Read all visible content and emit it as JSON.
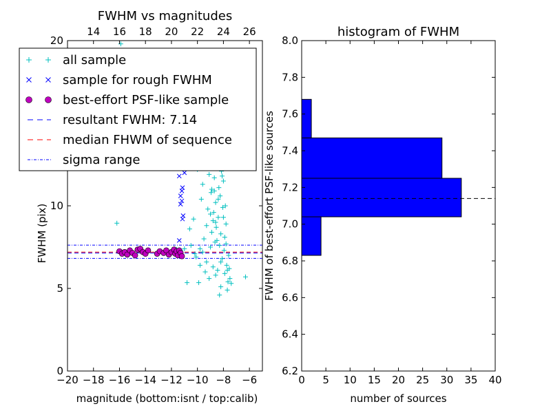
{
  "chart_data": [
    {
      "type": "scatter",
      "title": "FWHM vs magnitudes",
      "xlabel": "magnitude (bottom:isnt / top:calib)",
      "ylabel": "FWHM (pix)",
      "xlim": [
        -20,
        -5
      ],
      "ylim": [
        0,
        20
      ],
      "top_xlim": [
        12,
        27
      ],
      "x_ticks": [
        -20,
        -18,
        -16,
        -14,
        -12,
        -10,
        -8,
        -6
      ],
      "x_tick_labels": [
        "−20",
        "−18",
        "−16",
        "−14",
        "−12",
        "−10",
        "−8",
        "−6"
      ],
      "top_ticks": [
        14,
        16,
        18,
        20,
        22,
        24,
        26
      ],
      "top_tick_labels": [
        "14",
        "16",
        "18",
        "20",
        "22",
        "24",
        "26"
      ],
      "y_ticks": [
        0,
        5,
        10,
        20
      ],
      "y_tick_labels": [
        "0",
        "5",
        "10",
        "20"
      ],
      "legend_position": "upper-left",
      "legend": [
        {
          "label": "all sample",
          "marker": "+",
          "color": "#00BFBF"
        },
        {
          "label": "sample for rough FWHM",
          "marker": "x",
          "color": "#0000FF"
        },
        {
          "label": "best-effort PSF-like sample",
          "marker": "o",
          "color": "#BF00BF"
        },
        {
          "label": "resultant FWHM: 7.14",
          "line": "dashed",
          "color": "#0000FF"
        },
        {
          "label": "median FHWM of sequence",
          "line": "dashed",
          "color": "#FF0000"
        },
        {
          "label": "sigma range",
          "line": "dashdot",
          "color": "#0000FF"
        }
      ],
      "hlines": {
        "resultant": 7.14,
        "median": 7.2,
        "sigma": [
          6.82,
          7.62
        ]
      },
      "series": [
        {
          "name": "all sample",
          "points": [
            [
              -16.2,
              8.95
            ],
            [
              -15.9,
              19.8
            ],
            [
              -11.6,
              7.35
            ],
            [
              -11.3,
              7.3
            ],
            [
              -11.0,
              7.4
            ],
            [
              -10.8,
              5.35
            ],
            [
              -10.6,
              8.6
            ],
            [
              -10.5,
              7.6
            ],
            [
              -10.3,
              9.2
            ],
            [
              -10.2,
              7.1
            ],
            [
              -10.0,
              12.2
            ],
            [
              -9.9,
              5.35
            ],
            [
              -9.8,
              7.4
            ],
            [
              -9.7,
              10.4
            ],
            [
              -9.6,
              11.3
            ],
            [
              -9.5,
              8.0
            ],
            [
              -9.4,
              12.6
            ],
            [
              -9.3,
              6.6
            ],
            [
              -9.2,
              9.8
            ],
            [
              -9.1,
              11.9
            ],
            [
              -9.0,
              7.5
            ],
            [
              -8.95,
              10.8
            ],
            [
              -8.9,
              8.4
            ],
            [
              -8.85,
              12.4
            ],
            [
              -8.8,
              6.3
            ],
            [
              -8.75,
              9.6
            ],
            [
              -8.7,
              11.7
            ],
            [
              -8.65,
              7.8
            ],
            [
              -8.6,
              10.2
            ],
            [
              -8.55,
              8.7
            ],
            [
              -8.5,
              12.8
            ],
            [
              -8.45,
              6.1
            ],
            [
              -8.4,
              9.3
            ],
            [
              -8.35,
              11.1
            ],
            [
              -8.3,
              7.6
            ],
            [
              -8.25,
              10.6
            ],
            [
              -8.2,
              8.3
            ],
            [
              -8.15,
              12.1
            ],
            [
              -8.1,
              6.8
            ],
            [
              -8.05,
              9.9
            ],
            [
              -8.0,
              11.5
            ],
            [
              -7.95,
              7.3
            ],
            [
              -7.9,
              5.9
            ],
            [
              -7.85,
              10.0
            ],
            [
              -7.8,
              8.9
            ],
            [
              -7.75,
              6.4
            ],
            [
              -7.7,
              4.9
            ],
            [
              -7.65,
              5.4
            ],
            [
              -7.6,
              7.0
            ],
            [
              -7.55,
              6.2
            ],
            [
              -7.5,
              5.6
            ],
            [
              -7.4,
              5.3
            ],
            [
              -6.3,
              5.7
            ],
            [
              -8.3,
              4.6
            ],
            [
              -8.2,
              5.1
            ],
            [
              -8.9,
              11.0
            ],
            [
              -8.6,
              9.0
            ],
            [
              -8.4,
              10.4
            ],
            [
              -8.8,
              9.1
            ],
            [
              -8.5,
              7.9
            ],
            [
              -8.2,
              6.6
            ],
            [
              -8.0,
              9.3
            ],
            [
              -7.9,
              8.1
            ],
            [
              -9.3,
              8.8
            ],
            [
              -9.0,
              9.5
            ],
            [
              -8.7,
              10.9
            ],
            [
              -8.4,
              12.5
            ],
            [
              -8.1,
              11.8
            ],
            [
              -7.8,
              7.7
            ],
            [
              -9.6,
              7.2
            ],
            [
              -10.1,
              6.9
            ],
            [
              -9.8,
              6.4
            ],
            [
              -9.4,
              6.0
            ],
            [
              -9.1,
              5.6
            ],
            [
              -8.6,
              5.8
            ],
            [
              -7.7,
              6.1
            ]
          ]
        },
        {
          "name": "sample for rough FWHM",
          "points": [
            [
              -11.4,
              11.8
            ],
            [
              -11.3,
              10.6
            ],
            [
              -11.2,
              10.9
            ],
            [
              -11.15,
              11.1
            ],
            [
              -11.2,
              10.3
            ],
            [
              -11.3,
              10.1
            ],
            [
              -11.1,
              9.4
            ],
            [
              -11.15,
              9.2
            ],
            [
              -11.0,
              12.0
            ],
            [
              -11.4,
              7.9
            ]
          ]
        },
        {
          "name": "best-effort PSF-like sample",
          "points": [
            [
              -16.0,
              7.25
            ],
            [
              -15.8,
              7.1
            ],
            [
              -15.6,
              7.2
            ],
            [
              -15.4,
              7.05
            ],
            [
              -15.2,
              7.3
            ],
            [
              -15.0,
              7.15
            ],
            [
              -14.8,
              7.0
            ],
            [
              -14.6,
              7.35
            ],
            [
              -14.4,
              7.4
            ],
            [
              -14.2,
              7.2
            ],
            [
              -14.0,
              7.1
            ],
            [
              -13.8,
              7.3
            ],
            [
              -13.1,
              7.1
            ],
            [
              -12.9,
              7.25
            ],
            [
              -12.6,
              7.15
            ],
            [
              -12.4,
              7.3
            ],
            [
              -12.2,
              7.05
            ],
            [
              -12.0,
              7.2
            ],
            [
              -11.8,
              7.35
            ],
            [
              -11.7,
              7.1
            ],
            [
              -11.6,
              7.25
            ],
            [
              -11.5,
              7.0
            ],
            [
              -11.4,
              7.3
            ],
            [
              -11.3,
              7.15
            ],
            [
              -11.2,
              6.95
            ]
          ]
        }
      ]
    },
    {
      "type": "bar",
      "orientation": "horizontal",
      "title": "histogram of FWHM",
      "xlabel": "number of sources",
      "ylabel": "FWHM of best-effort PSF-like sources",
      "xlim": [
        0,
        40
      ],
      "ylim": [
        6.2,
        8.0
      ],
      "x_ticks": [
        0,
        5,
        10,
        15,
        20,
        25,
        30,
        35,
        40
      ],
      "x_tick_labels": [
        "0",
        "5",
        "10",
        "15",
        "20",
        "25",
        "30",
        "35",
        "40"
      ],
      "y_ticks": [
        6.2,
        6.4,
        6.6,
        6.8,
        7.0,
        7.2,
        7.4,
        7.6,
        7.8,
        8.0
      ],
      "y_tick_labels": [
        "6.2",
        "6.4",
        "6.6",
        "6.8",
        "7.0",
        "7.2",
        "7.4",
        "7.6",
        "7.8",
        "8.0"
      ],
      "bar_color": "#0000FF",
      "bins": [
        {
          "low": 6.83,
          "high": 7.04,
          "count": 4
        },
        {
          "low": 7.04,
          "high": 7.25,
          "count": 33
        },
        {
          "low": 7.25,
          "high": 7.47,
          "count": 29
        },
        {
          "low": 7.47,
          "high": 7.68,
          "count": 2
        }
      ],
      "hline": 7.14
    }
  ]
}
